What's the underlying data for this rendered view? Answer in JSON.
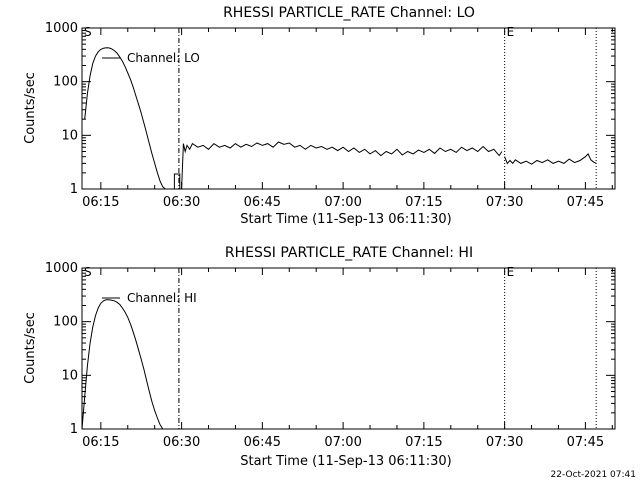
{
  "footer": {
    "stamp": "22-Oct-2021 07:41"
  },
  "chart_data": [
    {
      "type": "line",
      "title": "RHESSI PARTICLE_RATE Channel: LO",
      "xlabel": "Start Time (11-Sep-13 06:11:30)",
      "ylabel": "Counts/sec",
      "y_scale": "log",
      "ylim": [
        1,
        1000
      ],
      "y_ticks": [
        "1",
        "10",
        "100",
        "1000"
      ],
      "x_ticks": [
        "06:15",
        "06:30",
        "06:45",
        "07:00",
        "07:15",
        "07:30",
        "07:45"
      ],
      "xlim": [
        "06:11:30",
        "07:50:30"
      ],
      "legend": {
        "label": "Channel: LO",
        "placement": "top-left"
      },
      "markers": [
        {
          "label": "S",
          "time": "06:11:30",
          "style": "solid"
        },
        {
          "label": "",
          "time": "06:29:30",
          "style": "dash-dot"
        },
        {
          "label": "E",
          "time": "07:30:00",
          "style": "dotted"
        },
        {
          "label": "",
          "time": "07:47:00",
          "style": "dotted"
        }
      ],
      "series": [
        {
          "name": "Channel: LO",
          "segments": [
            {
              "x": [
                "06:12:00",
                "06:12:30",
                "06:13:00",
                "06:13:30",
                "06:14:00",
                "06:14:30",
                "06:15:00",
                "06:15:30",
                "06:16:00",
                "06:16:30",
                "06:17:00",
                "06:17:30",
                "06:18:00",
                "06:18:30",
                "06:19:00",
                "06:19:30",
                "06:20:00",
                "06:20:30",
                "06:21:00",
                "06:21:30",
                "06:22:00",
                "06:22:30",
                "06:23:00",
                "06:23:30",
                "06:24:00",
                "06:24:30",
                "06:25:00",
                "06:25:30",
                "06:26:00",
                "06:26:30",
                "06:27:00",
                "06:27:30",
                "06:28:00"
              ],
              "y": [
                20,
                60,
                130,
                220,
                300,
                360,
                400,
                420,
                430,
                425,
                410,
                380,
                340,
                290,
                240,
                190,
                145,
                110,
                80,
                55,
                38,
                26,
                17,
                11,
                7,
                4.5,
                3,
                2,
                1.4,
                1.1,
                1.0,
                1.0,
                1.0
              ]
            },
            {
              "x": [
                "06:28:40",
                "06:28:40",
                "06:29:40",
                "06:29:40"
              ],
              "y": [
                1.0,
                1.9,
                1.9,
                1.0
              ]
            },
            {
              "x": [
                "06:30:00",
                "06:30:20",
                "06:30:40",
                "06:31:00",
                "06:31:30",
                "06:32:00",
                "06:33:00",
                "06:34:00",
                "06:35:00",
                "06:36:00",
                "06:37:00",
                "06:38:00",
                "06:39:00",
                "06:40:00",
                "06:41:00",
                "06:42:00",
                "06:43:00",
                "06:44:00",
                "06:45:00",
                "06:46:00",
                "06:47:00",
                "06:48:00",
                "06:49:00",
                "06:50:00",
                "06:51:00",
                "06:52:00",
                "06:53:00",
                "06:54:00",
                "06:55:00",
                "06:56:00",
                "06:57:00",
                "06:58:00",
                "06:59:00",
                "07:00:00",
                "07:01:00",
                "07:02:00",
                "07:03:00",
                "07:04:00",
                "07:05:00",
                "07:06:00",
                "07:07:00",
                "07:08:00",
                "07:09:00",
                "07:10:00",
                "07:11:00",
                "07:12:00",
                "07:13:00",
                "07:14:00",
                "07:15:00",
                "07:16:00",
                "07:17:00",
                "07:18:00",
                "07:19:00",
                "07:20:00",
                "07:21:00",
                "07:22:00",
                "07:23:00",
                "07:24:00",
                "07:25:00",
                "07:26:00",
                "07:27:00",
                "07:28:00",
                "07:29:00",
                "07:29:30"
              ],
              "y": [
                1.0,
                7.0,
                5.0,
                6.5,
                5.5,
                7.0,
                6.0,
                6.5,
                5.5,
                7.0,
                6.0,
                6.5,
                5.8,
                7.0,
                6.0,
                6.8,
                6.2,
                7.2,
                6.5,
                7.0,
                6.0,
                7.5,
                6.8,
                7.2,
                6.0,
                6.5,
                5.5,
                6.5,
                5.8,
                6.2,
                5.5,
                6.0,
                5.2,
                6.0,
                5.0,
                5.8,
                4.8,
                5.5,
                4.5,
                5.2,
                4.2,
                5.0,
                4.5,
                5.5,
                4.3,
                5.0,
                4.5,
                5.3,
                4.8,
                5.5,
                4.6,
                5.8,
                5.0,
                5.5,
                4.8,
                6.0,
                5.2,
                5.8,
                5.0,
                6.2,
                5.0,
                5.5,
                4.2,
                5.0
              ]
            },
            {
              "x": [
                "07:30:00",
                "07:30:30",
                "07:31:00",
                "07:31:30",
                "07:32:00",
                "07:33:00",
                "07:34:00",
                "07:35:00",
                "07:36:00",
                "07:37:00",
                "07:38:00",
                "07:39:00",
                "07:40:00",
                "07:41:00",
                "07:42:00",
                "07:43:00",
                "07:44:00",
                "07:45:00",
                "07:45:30",
                "07:46:00",
                "07:46:30",
                "07:47:00"
              ],
              "y": [
                4.0,
                3.0,
                3.4,
                3.0,
                3.5,
                3.0,
                3.3,
                2.9,
                3.4,
                3.1,
                3.5,
                3.0,
                3.3,
                3.0,
                3.6,
                3.1,
                3.4,
                4.0,
                4.5,
                3.5,
                3.2,
                3.0
              ]
            }
          ]
        }
      ]
    },
    {
      "type": "line",
      "title": "RHESSI PARTICLE_RATE Channel: HI",
      "xlabel": "Start Time (11-Sep-13 06:11:30)",
      "ylabel": "Counts/sec",
      "y_scale": "log",
      "ylim": [
        1,
        1000
      ],
      "y_ticks": [
        "1",
        "10",
        "100",
        "1000"
      ],
      "x_ticks": [
        "06:15",
        "06:30",
        "06:45",
        "07:00",
        "07:15",
        "07:30",
        "07:45"
      ],
      "xlim": [
        "06:11:30",
        "07:50:30"
      ],
      "legend": {
        "label": "Channel: HI",
        "placement": "top-left"
      },
      "markers": [
        {
          "label": "S",
          "time": "06:11:30",
          "style": "solid"
        },
        {
          "label": "",
          "time": "06:29:30",
          "style": "dash-dot"
        },
        {
          "label": "E",
          "time": "07:30:00",
          "style": "dotted"
        },
        {
          "label": "",
          "time": "07:47:00",
          "style": "dotted"
        }
      ],
      "series": [
        {
          "name": "Channel: HI",
          "segments": [
            {
              "x": [
                "06:11:30",
                "06:12:00",
                "06:12:30",
                "06:13:00",
                "06:13:30",
                "06:14:00",
                "06:14:30",
                "06:15:00",
                "06:15:30",
                "06:16:00",
                "06:16:30",
                "06:17:00",
                "06:17:30",
                "06:18:00",
                "06:18:30",
                "06:19:00",
                "06:19:30",
                "06:20:00",
                "06:20:30",
                "06:21:00",
                "06:21:30",
                "06:22:00",
                "06:22:30",
                "06:23:00",
                "06:23:30",
                "06:24:00",
                "06:24:30",
                "06:25:00",
                "06:25:30",
                "06:26:00",
                "06:26:30",
                "06:27:00"
              ],
              "y": [
                1.0,
                4,
                15,
                40,
                80,
                130,
                180,
                220,
                245,
                255,
                255,
                250,
                245,
                230,
                210,
                180,
                150,
                120,
                90,
                65,
                45,
                30,
                20,
                13,
                8,
                5,
                3.2,
                2.2,
                1.6,
                1.2,
                1.0,
                1.0
              ]
            }
          ]
        }
      ]
    }
  ]
}
